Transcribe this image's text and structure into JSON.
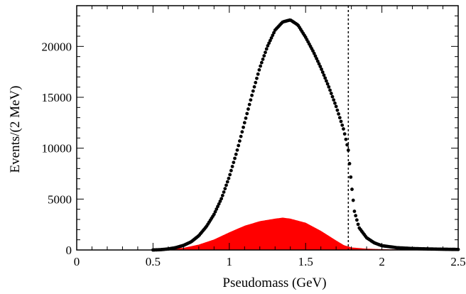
{
  "chart_data": {
    "type": "scatter",
    "xlabel": "Pseudomass (GeV)",
    "ylabel": "Events/(2 MeV)",
    "xlim": [
      0,
      2.5
    ],
    "ylim": [
      0,
      24000
    ],
    "x_ticks": [
      0,
      0.5,
      1,
      1.5,
      2,
      2.5
    ],
    "x_tick_labels": [
      "0",
      "0.5",
      "1",
      "1.5",
      "2",
      "2.5"
    ],
    "y_ticks": [
      0,
      5000,
      10000,
      15000,
      20000
    ],
    "y_tick_labels": [
      "0",
      "5000",
      "10000",
      "15000",
      "20000"
    ],
    "grid": false,
    "cut_line_x": 1.78,
    "series": [
      {
        "kind": "points",
        "color": "#000000",
        "points": [
          [
            0.5,
            0
          ],
          [
            0.55,
            30
          ],
          [
            0.6,
            100
          ],
          [
            0.65,
            230
          ],
          [
            0.7,
            450
          ],
          [
            0.75,
            800
          ],
          [
            0.8,
            1400
          ],
          [
            0.85,
            2300
          ],
          [
            0.9,
            3500
          ],
          [
            0.95,
            5100
          ],
          [
            1.0,
            7200
          ],
          [
            1.05,
            9700
          ],
          [
            1.1,
            12500
          ],
          [
            1.15,
            15300
          ],
          [
            1.2,
            17900
          ],
          [
            1.25,
            20000
          ],
          [
            1.3,
            21600
          ],
          [
            1.35,
            22400
          ],
          [
            1.4,
            22600
          ],
          [
            1.45,
            22100
          ],
          [
            1.5,
            20900
          ],
          [
            1.55,
            19500
          ],
          [
            1.6,
            17900
          ],
          [
            1.65,
            16100
          ],
          [
            1.7,
            14100
          ],
          [
            1.75,
            11800
          ],
          [
            1.78,
            9800
          ],
          [
            1.8,
            6500
          ],
          [
            1.82,
            3800
          ],
          [
            1.85,
            2200
          ],
          [
            1.9,
            1200
          ],
          [
            1.95,
            700
          ],
          [
            2.0,
            420
          ],
          [
            2.1,
            220
          ],
          [
            2.2,
            140
          ],
          [
            2.3,
            100
          ],
          [
            2.4,
            70
          ],
          [
            2.5,
            50
          ]
        ]
      },
      {
        "kind": "histogram",
        "color": "#ff0000",
        "points": [
          [
            0.1,
            0
          ],
          [
            0.3,
            0
          ],
          [
            0.5,
            0
          ],
          [
            0.6,
            60
          ],
          [
            0.7,
            180
          ],
          [
            0.8,
            500
          ],
          [
            0.9,
            1000
          ],
          [
            1.0,
            1700
          ],
          [
            1.1,
            2350
          ],
          [
            1.2,
            2800
          ],
          [
            1.3,
            3050
          ],
          [
            1.35,
            3150
          ],
          [
            1.4,
            3050
          ],
          [
            1.5,
            2650
          ],
          [
            1.6,
            1850
          ],
          [
            1.7,
            900
          ],
          [
            1.75,
            450
          ],
          [
            1.8,
            220
          ],
          [
            1.9,
            100
          ],
          [
            2.0,
            50
          ],
          [
            2.1,
            20
          ],
          [
            2.3,
            5
          ],
          [
            2.5,
            0
          ]
        ]
      }
    ]
  }
}
